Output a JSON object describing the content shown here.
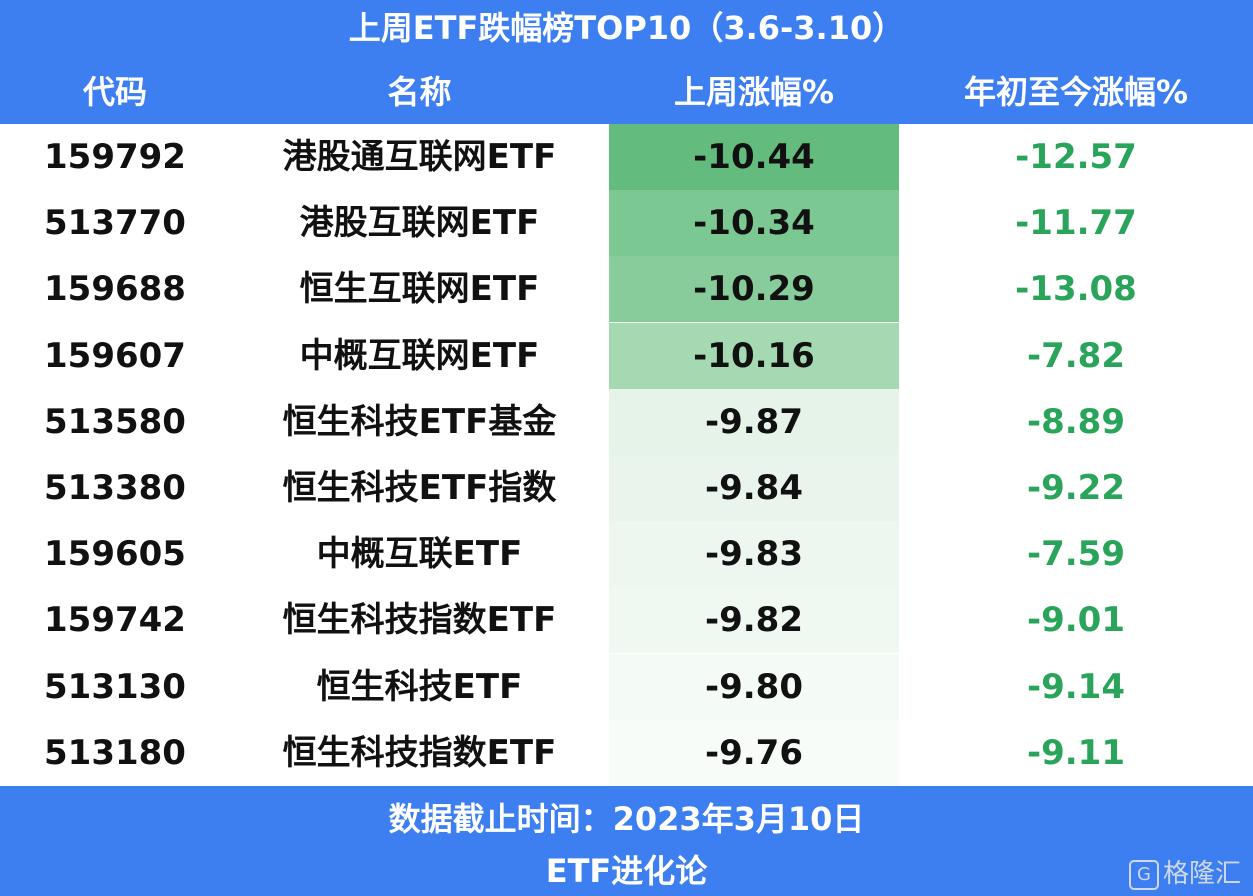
{
  "header": {
    "title": "上周ETF跌幅榜TOP10（3.6-3.10）"
  },
  "table": {
    "columns": [
      "代码",
      "名称",
      "上周涨幅%",
      "年初至今涨幅%"
    ],
    "rows": [
      [
        "159792",
        "港股通互联网ETF",
        "-10.44",
        "-12.57"
      ],
      [
        "513770",
        "港股互联网ETF",
        "-10.34",
        "-11.77"
      ],
      [
        "159688",
        "恒生互联网ETF",
        "-10.29",
        "-13.08"
      ],
      [
        "159607",
        "中概互联网ETF",
        "-10.16",
        "-7.82"
      ],
      [
        "513580",
        "恒生科技ETF基金",
        "-9.87",
        "-8.89"
      ],
      [
        "513380",
        "恒生科技ETF指数",
        "-9.84",
        "-9.22"
      ],
      [
        "159605",
        "中概互联ETF",
        "-9.83",
        "-7.59"
      ],
      [
        "159742",
        "恒生科技指数ETF",
        "-9.82",
        "-9.01"
      ],
      [
        "513130",
        "恒生科技ETF",
        "-9.80",
        "-9.14"
      ],
      [
        "513180",
        "恒生科技指数ETF",
        "-9.76",
        "-9.11"
      ]
    ]
  },
  "footer": {
    "note": "数据截止时间：2023年3月10日",
    "source": "ETF进化论"
  },
  "watermark": {
    "logo": "G",
    "text": "格隆汇"
  }
}
